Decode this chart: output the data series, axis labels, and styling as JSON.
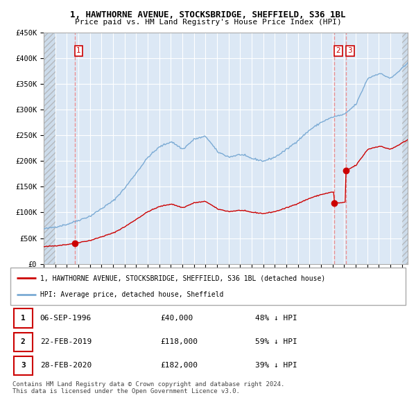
{
  "title1": "1, HAWTHORNE AVENUE, STOCKSBRIDGE, SHEFFIELD, S36 1BL",
  "title2": "Price paid vs. HM Land Registry's House Price Index (HPI)",
  "ylabel_ticks": [
    "£0",
    "£50K",
    "£100K",
    "£150K",
    "£200K",
    "£250K",
    "£300K",
    "£350K",
    "£400K",
    "£450K"
  ],
  "ylim": [
    0,
    450000
  ],
  "xlim_start": 1994.0,
  "xlim_end": 2025.5,
  "sale_dates": [
    1996.68,
    2019.13,
    2020.16
  ],
  "sale_prices": [
    40000,
    118000,
    182000
  ],
  "sale_labels": [
    "1",
    "2",
    "3"
  ],
  "legend_line1": "1, HAWTHORNE AVENUE, STOCKSBRIDGE, SHEFFIELD, S36 1BL (detached house)",
  "legend_line2": "HPI: Average price, detached house, Sheffield",
  "table_rows": [
    [
      "1",
      "06-SEP-1996",
      "£40,000",
      "48% ↓ HPI"
    ],
    [
      "2",
      "22-FEB-2019",
      "£118,000",
      "59% ↓ HPI"
    ],
    [
      "3",
      "28-FEB-2020",
      "£182,000",
      "39% ↓ HPI"
    ]
  ],
  "footer": "Contains HM Land Registry data © Crown copyright and database right 2024.\nThis data is licensed under the Open Government Licence v3.0.",
  "hpi_color": "#7aaad4",
  "price_color": "#cc0000",
  "dot_color": "#cc0000",
  "vline_color": "#ee8888",
  "chart_bg": "#dce8f5",
  "grid_color": "#ffffff"
}
